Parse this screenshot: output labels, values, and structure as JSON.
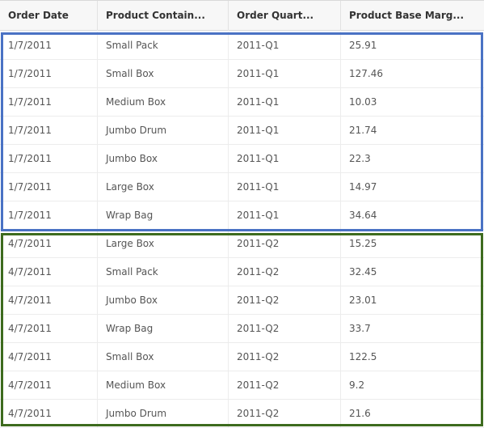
{
  "columns": [
    "Order Date",
    "Product Contain...",
    "Order Quart...",
    "Product Base Marg..."
  ],
  "rows": [
    [
      "1/7/2011",
      "Small Pack",
      "2011-Q1",
      "25.91"
    ],
    [
      "1/7/2011",
      "Small Box",
      "2011-Q1",
      "127.46"
    ],
    [
      "1/7/2011",
      "Medium Box",
      "2011-Q1",
      "10.03"
    ],
    [
      "1/7/2011",
      "Jumbo Drum",
      "2011-Q1",
      "21.74"
    ],
    [
      "1/7/2011",
      "Jumbo Box",
      "2011-Q1",
      "22.3"
    ],
    [
      "1/7/2011",
      "Large Box",
      "2011-Q1",
      "14.97"
    ],
    [
      "1/7/2011",
      "Wrap Bag",
      "2011-Q1",
      "34.64"
    ],
    [
      "4/7/2011",
      "Large Box",
      "2011-Q2",
      "15.25"
    ],
    [
      "4/7/2011",
      "Small Pack",
      "2011-Q2",
      "32.45"
    ],
    [
      "4/7/2011",
      "Jumbo Box",
      "2011-Q2",
      "23.01"
    ],
    [
      "4/7/2011",
      "Wrap Bag",
      "2011-Q2",
      "33.7"
    ],
    [
      "4/7/2011",
      "Small Box",
      "2011-Q2",
      "122.5"
    ],
    [
      "4/7/2011",
      "Medium Box",
      "2011-Q2",
      "9.2"
    ],
    [
      "4/7/2011",
      "Jumbo Drum",
      "2011-Q2",
      "21.6"
    ]
  ],
  "highlight_colors": {
    "group_q1": "#4a72c4",
    "group_q2": "#3d6b1e"
  }
}
